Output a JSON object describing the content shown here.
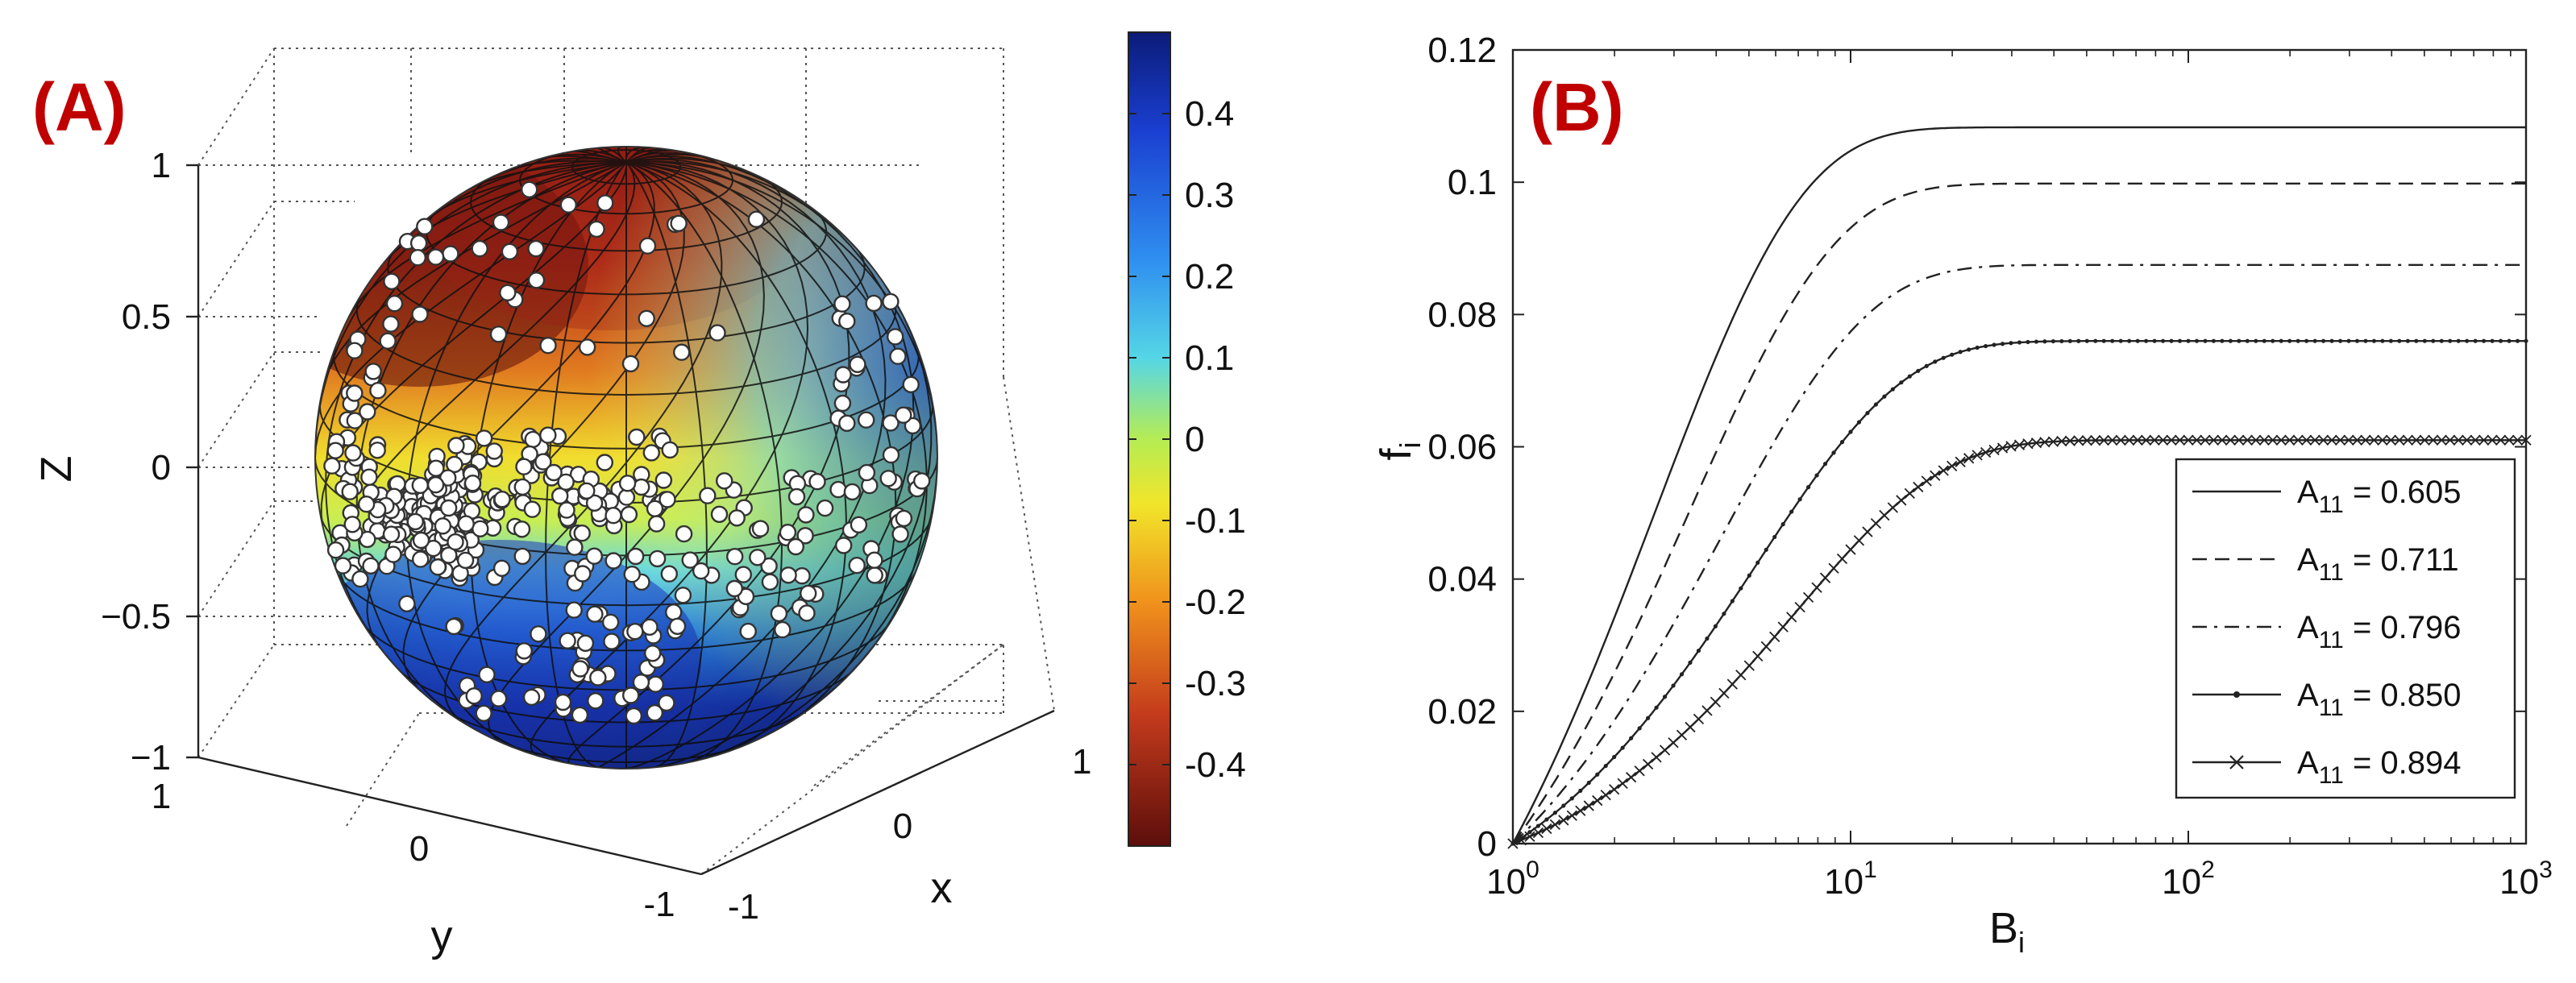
{
  "chart_data": [
    {
      "type": "surface3d",
      "panel_label": "(A)",
      "description_axes": {
        "zlabel": "Z",
        "xlabel": "x",
        "ylabel": "y",
        "zlim": [
          -1,
          1
        ],
        "xlim": [
          -1,
          1
        ],
        "ylim": [
          -1,
          1
        ],
        "z_ticks": [
          "1",
          "0.5",
          "0",
          "−0.5",
          "−1"
        ],
        "x_ticks": [
          "1",
          "0",
          "-1"
        ],
        "y_ticks": [
          "1",
          "0",
          "-1"
        ]
      },
      "colorbar": {
        "ticks": [
          "0.4",
          "0.3",
          "0.2",
          "0.1",
          "0",
          "-0.1",
          "-0.2",
          "-0.3",
          "-0.4"
        ],
        "range": [
          -0.5,
          0.5
        ],
        "colormap": "jet_reversed",
        "colors_top_to_bottom": [
          "#0b1b78",
          "#1a4fd8",
          "#2fa0ee",
          "#5fe0d8",
          "#c8ee3c",
          "#f4e12a",
          "#f08a1c",
          "#c1371b",
          "#7a1410"
        ]
      }
    },
    {
      "type": "line",
      "panel_label": "(B)",
      "xlabel": "B",
      "xlabel_sub": "i",
      "ylabel": "f",
      "ylabel_sub": "i",
      "xscale": "log",
      "xlim": [
        1,
        1000
      ],
      "ylim": [
        0,
        0.12
      ],
      "y_ticks": [
        "0",
        "0.02",
        "0.04",
        "0.06",
        "0.08",
        "0.1",
        "0.12"
      ],
      "x_ticks": [
        {
          "base": "10",
          "exp": "0"
        },
        {
          "base": "10",
          "exp": "1"
        },
        {
          "base": "10",
          "exp": "2"
        },
        {
          "base": "10",
          "exp": "3"
        }
      ],
      "x_tick_values": [
        1,
        10,
        100,
        1000
      ],
      "y_tick_values": [
        0,
        0.02,
        0.04,
        0.06,
        0.08,
        0.1,
        0.12
      ],
      "series": [
        {
          "name": "A11 = 0.605",
          "label_main": "A",
          "label_sub": "11",
          "label_rest": " = 0.605",
          "style": "solid",
          "asymptote": 0.1083,
          "k": 0.38
        },
        {
          "name": "A11 = 0.711",
          "label_main": "A",
          "label_sub": "11",
          "label_rest": " = 0.711",
          "style": "dashed",
          "asymptote": 0.0998,
          "k": 0.3
        },
        {
          "name": "A11 = 0.796",
          "label_main": "A",
          "label_sub": "11",
          "label_rest": " = 0.796",
          "style": "dashdot",
          "asymptote": 0.0875,
          "k": 0.24
        },
        {
          "name": "A11 = 0.850",
          "label_main": "A",
          "label_sub": "11",
          "label_rest": " = 0.850",
          "style": "solid-dot",
          "asymptote": 0.076,
          "k": 0.19
        },
        {
          "name": "A11 = 0.894",
          "label_main": "A",
          "label_sub": "11",
          "label_rest": " = 0.894",
          "style": "solid-x",
          "asymptote": 0.061,
          "k": 0.145
        }
      ],
      "legend_position": "lower-right"
    }
  ]
}
